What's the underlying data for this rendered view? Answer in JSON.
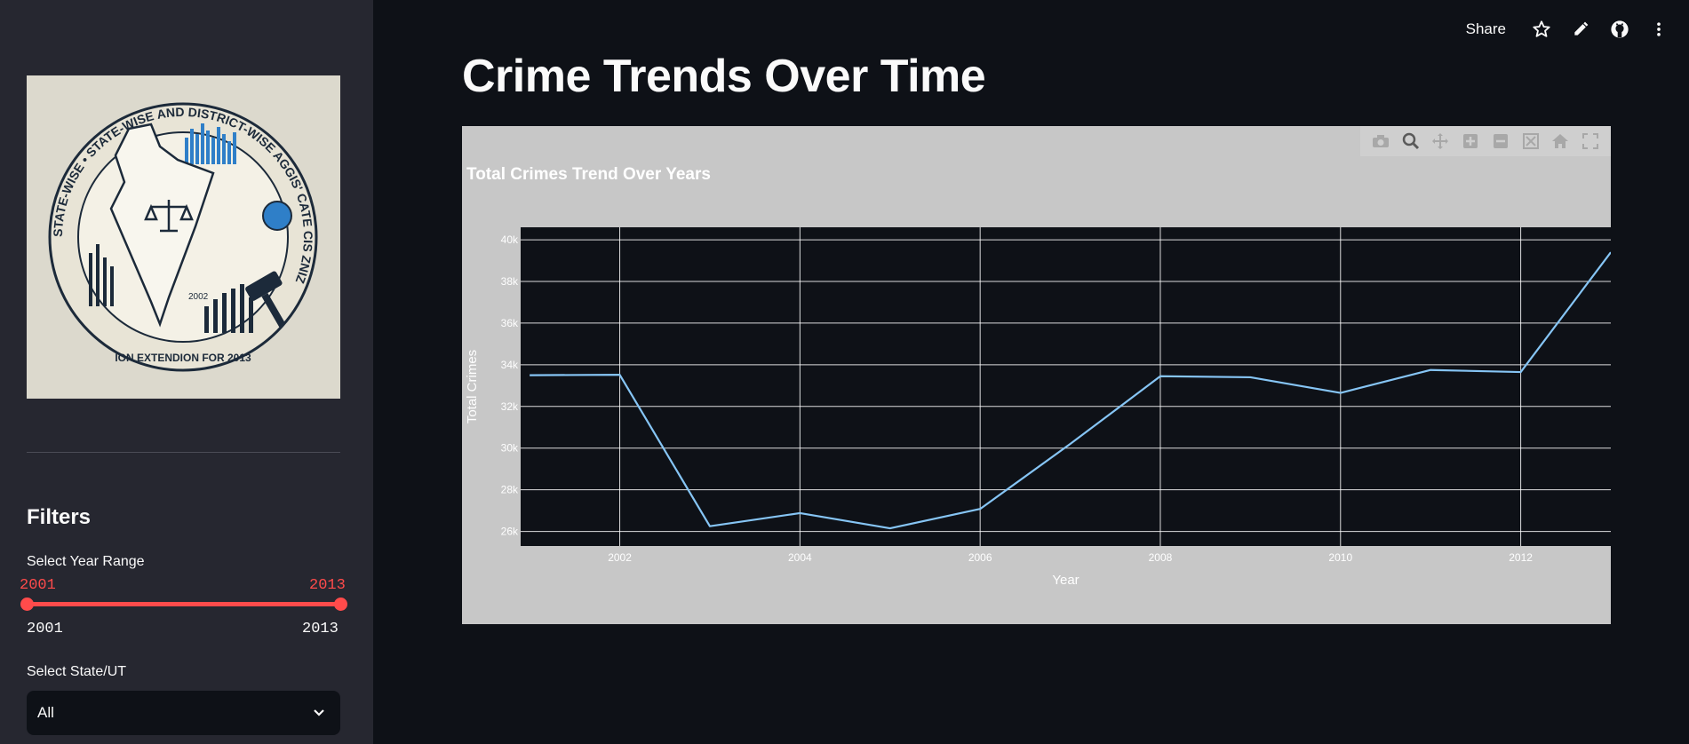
{
  "sidebar": {
    "logo_alt": "State-wise and District-wise Crime Statistics Logo",
    "logo_text": {
      "ring": "STATE-WISE • STATE-WISE AND DISTRICT-WISE AGGIS' CATE CIS ZNIZ",
      "bottom": "ION EXTENDION FOR 2013",
      "year": "2002"
    },
    "filters_title": "Filters",
    "year_range_label": "Select Year Range",
    "year_range": {
      "min": "2001",
      "max": "2013",
      "selected_min": "2001",
      "selected_max": "2013"
    },
    "state_label": "Select State/UT",
    "state_value": "All"
  },
  "toolbar": {
    "share_label": "Share",
    "icons": [
      "star-icon",
      "pencil-icon",
      "github-icon",
      "more-vertical-icon"
    ]
  },
  "main": {
    "title": "Crime Trends Over Time"
  },
  "modebar_icons": [
    "camera-icon",
    "zoom-icon",
    "pan-icon",
    "zoom-in-icon",
    "zoom-out-icon",
    "autoscale-icon",
    "reset-axes-icon",
    "fullscreen-icon"
  ],
  "chart_data": {
    "type": "line",
    "title": "Total Crimes Trend Over Years",
    "xlabel": "Year",
    "ylabel": "Total Crimes",
    "x": [
      2001,
      2002,
      2003,
      2004,
      2005,
      2006,
      2007,
      2008,
      2009,
      2010,
      2011,
      2012,
      2013
    ],
    "series": [
      {
        "values": [
          33500,
          33520,
          26250,
          26880,
          26150,
          27080,
          30200,
          33450,
          33400,
          32650,
          33750,
          33650,
          39400
        ]
      }
    ],
    "xlim": [
      2000.9,
      2013
    ],
    "ylim": [
      25300,
      40600
    ],
    "x_ticks": [
      2002,
      2004,
      2006,
      2008,
      2010,
      2012
    ],
    "x_tick_labels": [
      "2002",
      "2004",
      "2006",
      "2008",
      "2010",
      "2012"
    ],
    "y_ticks": [
      26000,
      28000,
      30000,
      32000,
      34000,
      36000,
      38000,
      40000
    ],
    "y_tick_labels": [
      "26k",
      "28k",
      "30k",
      "32k",
      "34k",
      "36k",
      "38k",
      "40k"
    ],
    "grid": true,
    "colors": {
      "line": "#86c5f5",
      "plot_bg": "#0e1117",
      "paper_bg": "#c7c7c7",
      "grid": "#ffffff"
    }
  }
}
